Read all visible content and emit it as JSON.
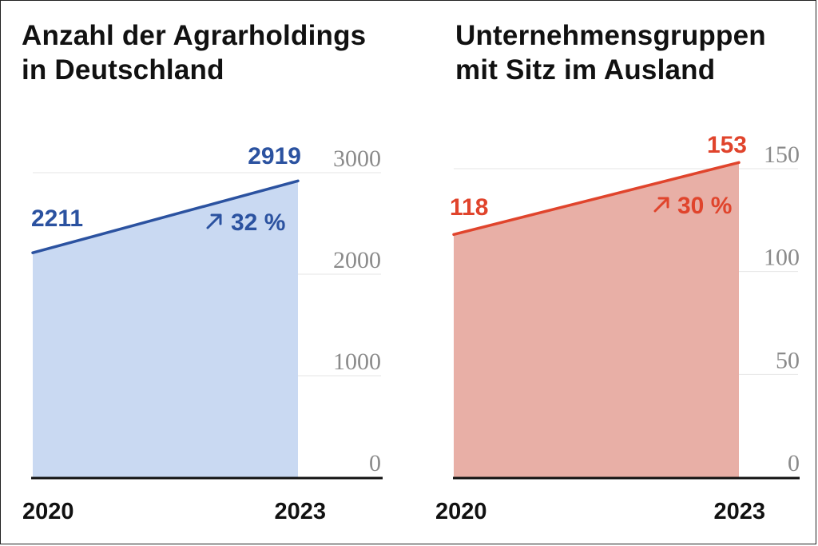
{
  "chart_data": [
    {
      "type": "area",
      "title_lines": [
        "Anzahl der Agrarholdings",
        "in Deutschland"
      ],
      "x": [
        "2020",
        "2023"
      ],
      "values": [
        2211,
        2919
      ],
      "ylim": [
        0,
        3000
      ],
      "yticks": [
        "0",
        "1000",
        "2000",
        "3000"
      ],
      "change_label": "32 %",
      "change_icon": "arrow-up-right-icon",
      "grid": true,
      "colors": {
        "line": "#2b52a0",
        "fill": "#c9d9f2",
        "text": "#2b52a0"
      }
    },
    {
      "type": "area",
      "title_lines": [
        "Unternehmensgruppen",
        "mit Sitz im Ausland"
      ],
      "x": [
        "2020",
        "2023"
      ],
      "values": [
        118,
        153
      ],
      "ylim": [
        0,
        150
      ],
      "yticks": [
        "0",
        "50",
        "100",
        "150"
      ],
      "change_label": "30 %",
      "change_icon": "arrow-up-right-icon",
      "grid": true,
      "colors": {
        "line": "#e0442c",
        "fill": "#e8afa6",
        "text": "#e0442c"
      }
    }
  ]
}
